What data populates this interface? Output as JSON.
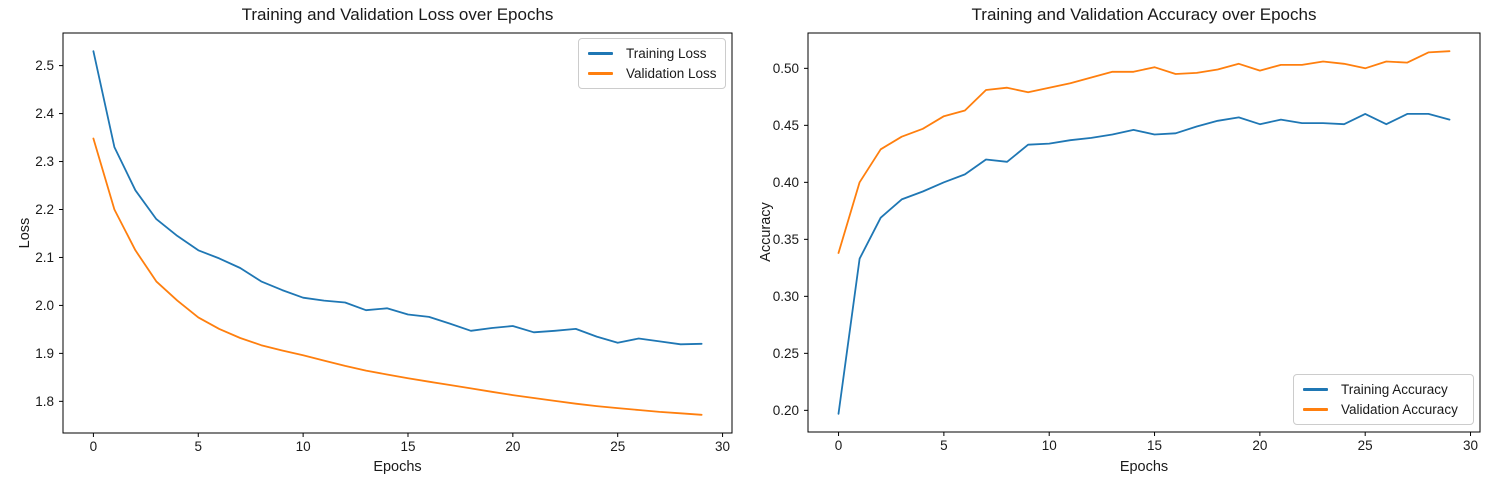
{
  "figure": {
    "background": "#ffffff",
    "text_color": "#1a1a1a",
    "spine_color": "#000000"
  },
  "chart_data": [
    {
      "type": "line",
      "title": "Training and Validation Loss over Epochs",
      "xlabel": "Epochs",
      "ylabel": "Loss",
      "grid": false,
      "legend_position": "top-right",
      "x": [
        0,
        1,
        2,
        3,
        4,
        5,
        6,
        7,
        8,
        9,
        10,
        11,
        12,
        13,
        14,
        15,
        16,
        17,
        18,
        19,
        20,
        21,
        22,
        23,
        24,
        25,
        26,
        27,
        28,
        29
      ],
      "xlim": [
        -1.45,
        30.45
      ],
      "ylim": [
        1.734,
        2.568
      ],
      "xticks": [
        0,
        5,
        10,
        15,
        20,
        25,
        30
      ],
      "xtick_labels": [
        "0",
        "5",
        "10",
        "15",
        "20",
        "25",
        "30"
      ],
      "yticks": [
        1.8,
        1.9,
        2.0,
        2.1,
        2.2,
        2.3,
        2.4,
        2.5
      ],
      "ytick_labels": [
        "1.8",
        "1.9",
        "2.0",
        "2.1",
        "2.2",
        "2.3",
        "2.4",
        "2.5"
      ],
      "series": [
        {
          "name": "Training Loss",
          "color": "#1f77b4",
          "values": [
            2.53,
            2.33,
            2.24,
            2.18,
            2.145,
            2.115,
            2.098,
            2.078,
            2.05,
            2.032,
            2.016,
            2.01,
            2.006,
            1.99,
            1.994,
            1.981,
            1.976,
            1.962,
            1.947,
            1.953,
            1.957,
            1.944,
            1.947,
            1.951,
            1.935,
            1.922,
            1.931,
            1.925,
            1.919,
            1.92
          ]
        },
        {
          "name": "Validation Loss",
          "color": "#ff7f0e",
          "values": [
            2.348,
            2.2,
            2.115,
            2.05,
            2.01,
            1.975,
            1.951,
            1.932,
            1.917,
            1.906,
            1.896,
            1.885,
            1.874,
            1.864,
            1.856,
            1.848,
            1.841,
            1.834,
            1.827,
            1.82,
            1.813,
            1.807,
            1.801,
            1.795,
            1.79,
            1.786,
            1.782,
            1.778,
            1.775,
            1.772
          ]
        }
      ]
    },
    {
      "type": "line",
      "title": "Training and Validation Accuracy over Epochs",
      "xlabel": "Epochs",
      "ylabel": "Accuracy",
      "grid": false,
      "legend_position": "bottom-right",
      "x": [
        0,
        1,
        2,
        3,
        4,
        5,
        6,
        7,
        8,
        9,
        10,
        11,
        12,
        13,
        14,
        15,
        16,
        17,
        18,
        19,
        20,
        21,
        22,
        23,
        24,
        25,
        26,
        27,
        28,
        29
      ],
      "xlim": [
        -1.45,
        30.45
      ],
      "ylim": [
        0.181,
        0.531
      ],
      "xticks": [
        0,
        5,
        10,
        15,
        20,
        25,
        30
      ],
      "xtick_labels": [
        "0",
        "5",
        "10",
        "15",
        "20",
        "25",
        "30"
      ],
      "yticks": [
        0.2,
        0.25,
        0.3,
        0.35,
        0.4,
        0.45,
        0.5
      ],
      "ytick_labels": [
        "0.20",
        "0.25",
        "0.30",
        "0.35",
        "0.40",
        "0.45",
        "0.50"
      ],
      "series": [
        {
          "name": "Training Accuracy",
          "color": "#1f77b4",
          "values": [
            0.197,
            0.333,
            0.369,
            0.385,
            0.392,
            0.4,
            0.407,
            0.42,
            0.418,
            0.433,
            0.434,
            0.437,
            0.439,
            0.442,
            0.446,
            0.442,
            0.443,
            0.449,
            0.454,
            0.457,
            0.451,
            0.455,
            0.452,
            0.452,
            0.451,
            0.46,
            0.451,
            0.46,
            0.46,
            0.455
          ]
        },
        {
          "name": "Validation Accuracy",
          "color": "#ff7f0e",
          "values": [
            0.338,
            0.4,
            0.429,
            0.44,
            0.447,
            0.458,
            0.463,
            0.481,
            0.483,
            0.479,
            0.483,
            0.487,
            0.492,
            0.497,
            0.497,
            0.501,
            0.495,
            0.496,
            0.499,
            0.504,
            0.498,
            0.503,
            0.503,
            0.506,
            0.504,
            0.5,
            0.506,
            0.505,
            0.514,
            0.515
          ]
        }
      ]
    }
  ]
}
